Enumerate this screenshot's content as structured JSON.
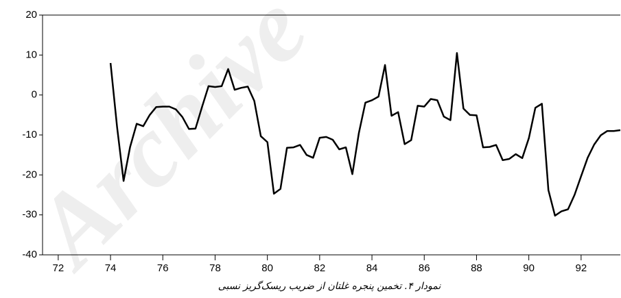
{
  "chart_data": {
    "type": "line",
    "caption": "نمودار ۴. تخمین پنجره غلتان از ضریب ریسک‌گریز نسبی",
    "watermark": "Archive",
    "x": [
      74.0,
      74.25,
      74.5,
      74.75,
      75.0,
      75.25,
      75.5,
      75.75,
      76.0,
      76.25,
      76.5,
      76.75,
      77.0,
      77.25,
      77.5,
      77.75,
      78.0,
      78.25,
      78.5,
      78.75,
      79.0,
      79.25,
      79.5,
      79.75,
      80.0,
      80.25,
      80.5,
      80.75,
      81.0,
      81.25,
      81.5,
      81.75,
      82.0,
      82.25,
      82.5,
      82.75,
      83.0,
      83.25,
      83.5,
      83.75,
      84.0,
      84.25,
      84.5,
      84.75,
      85.0,
      85.25,
      85.5,
      85.75,
      86.0,
      86.25,
      86.5,
      86.75,
      87.0,
      87.25,
      87.5,
      87.75,
      88.0,
      88.25,
      88.5,
      88.75,
      89.0,
      89.25,
      89.5,
      89.75,
      90.0,
      90.25,
      90.5,
      90.75,
      91.0,
      91.25,
      91.5,
      91.75,
      92.0,
      92.25,
      92.5,
      92.75,
      93.0,
      93.25,
      93.5
    ],
    "series": [
      {
        "color": "#000000",
        "values": [
          8,
          -8,
          -21.5,
          -13,
          -7.2,
          -7.8,
          -5,
          -3,
          -2.9,
          -2.9,
          -3.6,
          -5.5,
          -8.5,
          -8.4,
          -3,
          2.2,
          2,
          2.2,
          6.5,
          1.3,
          1.8,
          2.1,
          -1.5,
          -10.3,
          -11.8,
          -24.7,
          -23.5,
          -13.2,
          -13.1,
          -12.5,
          -15,
          -15.7,
          -10.7,
          -10.5,
          -11.2,
          -13.6,
          -13.1,
          -19.8,
          -9.5,
          -1.9,
          -1.3,
          -0.4,
          7.5,
          -5.2,
          -4.3,
          -12.3,
          -11.3,
          -2.7,
          -2.9,
          -1,
          -1.3,
          -5.4,
          -6.3,
          10.5,
          -3.4,
          -5,
          -5.1,
          -13.1,
          -13,
          -12.5,
          -16.3,
          -16,
          -14.8,
          -15.8,
          -10.8,
          -3.2,
          -2.2,
          -23.8,
          -30.2,
          -29.1,
          -28.6,
          -25,
          -20.3,
          -15.7,
          -12.4,
          -10.1,
          -9,
          -9,
          -8.8
        ]
      }
    ],
    "xlim": [
      71.4,
      93.5
    ],
    "xticks": [
      72,
      74,
      76,
      78,
      80,
      82,
      84,
      86,
      88,
      90,
      92
    ],
    "ylim": [
      -40,
      20
    ],
    "yticks": [
      -40,
      -30,
      -20,
      -10,
      0,
      10,
      20
    ]
  }
}
